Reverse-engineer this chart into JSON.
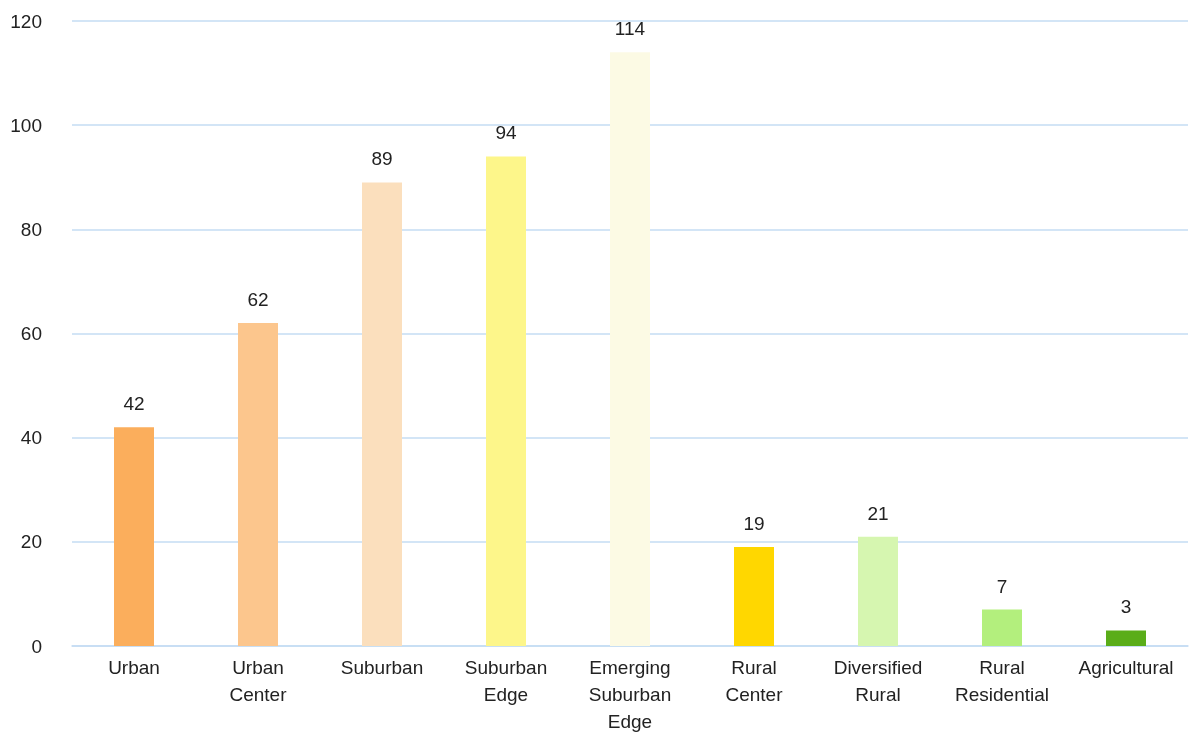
{
  "chart_data": {
    "type": "bar",
    "categories": [
      "Urban",
      "Urban Center",
      "Suburban",
      "Suburban Edge",
      "Emerging Suburban Edge",
      "Rural Center",
      "Diversified Rural",
      "Rural Residential",
      "Agricultural"
    ],
    "values": [
      42,
      62,
      89,
      94,
      114,
      19,
      21,
      7,
      3
    ],
    "colors": [
      "#fbae5c",
      "#fcc68d",
      "#fbdfbd",
      "#fdf68a",
      "#fcfae4",
      "#ffd700",
      "#d6f6b0",
      "#b3ef7d",
      "#5aad19"
    ],
    "ylim": [
      0,
      120
    ],
    "yticks": [
      0,
      20,
      40,
      60,
      80,
      100,
      120
    ],
    "grid": "y",
    "data_labels": true
  }
}
